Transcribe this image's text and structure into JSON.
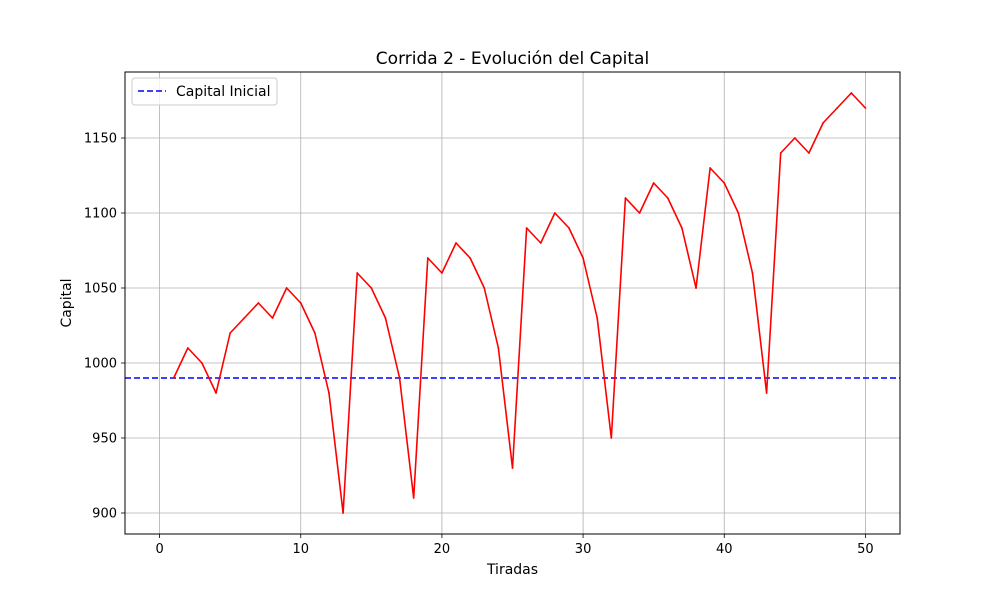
{
  "chart_data": {
    "type": "line",
    "title": "Corrida 2 - Evolución del Capital",
    "xlabel": "Tiradas",
    "ylabel": "Capital",
    "xlim": [
      -2.45,
      52.45
    ],
    "ylim": [
      886,
      1194
    ],
    "xticks": [
      0,
      10,
      20,
      30,
      40,
      50
    ],
    "yticks": [
      900,
      950,
      1000,
      1050,
      1100,
      1150
    ],
    "grid": true,
    "legend_position": "upper left",
    "series": [
      {
        "name": "Capital",
        "color": "#ff0000",
        "x": [
          1,
          2,
          3,
          4,
          5,
          6,
          7,
          8,
          9,
          10,
          11,
          12,
          13,
          14,
          15,
          16,
          17,
          18,
          19,
          20,
          21,
          22,
          23,
          24,
          25,
          26,
          27,
          28,
          29,
          30,
          31,
          32,
          33,
          34,
          35,
          36,
          37,
          38,
          39,
          40,
          41,
          42,
          43,
          44,
          45,
          46,
          47,
          48,
          49,
          50
        ],
        "values": [
          990,
          1010,
          1000,
          980,
          1020,
          1030,
          1040,
          1030,
          1050,
          1040,
          1020,
          980,
          900,
          1060,
          1050,
          1030,
          990,
          910,
          1070,
          1060,
          1080,
          1070,
          1050,
          1010,
          930,
          1090,
          1080,
          1100,
          1090,
          1070,
          1030,
          950,
          1110,
          1100,
          1120,
          1110,
          1090,
          1050,
          1130,
          1120,
          1100,
          1060,
          980,
          1140,
          1150,
          1140,
          1160,
          1170,
          1180,
          1170
        ]
      }
    ],
    "reference_lines": [
      {
        "name": "Capital Inicial",
        "value": 990,
        "color": "#0000ff",
        "style": "dashed"
      }
    ]
  }
}
